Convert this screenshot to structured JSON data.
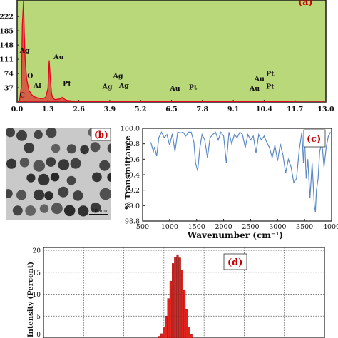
{
  "chart_data": [
    {
      "panel": "(a)",
      "type": "line",
      "background": "#b8d87a",
      "line_color": "#e8001c",
      "xlim": [
        0.0,
        13.0
      ],
      "x_ticks": [
        "0.0",
        "1.3",
        "2.6",
        "3.9",
        "5.2",
        "6.5",
        "7.8",
        "9.1",
        "10.4",
        "11.7",
        "13.0"
      ],
      "y_ticks": [
        "37",
        "74",
        "111",
        "148",
        "185",
        "222"
      ],
      "ylim": [
        0,
        265
      ],
      "x": [
        0.0,
        0.1,
        0.18,
        0.22,
        0.27,
        0.3,
        0.34,
        0.4,
        0.5,
        0.6,
        0.7,
        0.8,
        0.9,
        1.0,
        1.1,
        1.2,
        1.3,
        1.35,
        1.4,
        1.45,
        1.5,
        1.6,
        1.8,
        1.9,
        2.0,
        2.1,
        2.3,
        2.6,
        3.0,
        3.5,
        4.0,
        4.5,
        5.0,
        6.0,
        7.0,
        8.0,
        9.0,
        10.0,
        11.0,
        12.0,
        13.0
      ],
      "y": [
        0,
        3,
        40,
        200,
        262,
        180,
        110,
        60,
        30,
        20,
        14,
        12,
        10,
        9,
        9,
        12,
        35,
        108,
        60,
        22,
        10,
        6,
        8,
        12,
        7,
        4,
        3,
        2,
        2,
        2,
        2,
        1,
        1,
        1,
        1,
        1,
        1,
        1,
        1,
        0,
        0
      ],
      "peak_labels": [
        {
          "text": "Ag",
          "x": 0.32,
          "y": 128
        },
        {
          "text": "C",
          "x": 0.22,
          "y": 12
        },
        {
          "text": "O",
          "x": 0.55,
          "y": 62
        },
        {
          "text": "Al",
          "x": 0.85,
          "y": 37
        },
        {
          "text": "Au",
          "x": 1.75,
          "y": 111
        },
        {
          "text": "Pt",
          "x": 2.1,
          "y": 42
        },
        {
          "text": "Ag",
          "x": 4.25,
          "y": 62
        },
        {
          "text": "Ag",
          "x": 3.8,
          "y": 34
        },
        {
          "text": "Ag",
          "x": 4.5,
          "y": 37
        },
        {
          "text": "Au",
          "x": 6.65,
          "y": 30
        },
        {
          "text": "Pt",
          "x": 7.4,
          "y": 32
        },
        {
          "text": "Au",
          "x": 10.2,
          "y": 55
        },
        {
          "text": "Pt",
          "x": 10.65,
          "y": 68
        },
        {
          "text": "Au",
          "x": 10.0,
          "y": 30
        },
        {
          "text": "Pt",
          "x": 10.65,
          "y": 34
        }
      ]
    },
    {
      "panel": "(b)",
      "type": "image",
      "scale_bar": "20 nm"
    },
    {
      "panel": "(c)",
      "type": "line",
      "line_color": "#5b8ac6",
      "xlabel": "Wavenumber (cm⁻¹)",
      "ylabel": "% Transmittance",
      "xlim": [
        500,
        4000
      ],
      "ylim": [
        98.8,
        100.0
      ],
      "x_ticks": [
        "500",
        "1000",
        "1500",
        "2000",
        "2500",
        "3000",
        "3500",
        "4000"
      ],
      "y_ticks": [
        "98.8",
        "99.0",
        "99.2",
        "99.4",
        "99.6",
        "99.8",
        "100.0"
      ],
      "x": [
        650,
        700,
        720,
        760,
        800,
        850,
        900,
        950,
        1000,
        1050,
        1100,
        1150,
        1200,
        1250,
        1300,
        1350,
        1400,
        1450,
        1480,
        1520,
        1560,
        1600,
        1650,
        1700,
        1750,
        1800,
        1850,
        1900,
        1950,
        2000,
        2050,
        2100,
        2150,
        2200,
        2250,
        2300,
        2350,
        2400,
        2450,
        2500,
        2550,
        2600,
        2650,
        2700,
        2750,
        2800,
        2850,
        2900,
        2950,
        3000,
        3050,
        3100,
        3150,
        3200,
        3250,
        3300,
        3350,
        3400,
        3450,
        3480,
        3500,
        3530,
        3560,
        3600,
        3640,
        3680,
        3700,
        3720,
        3750,
        3780,
        3820,
        3860,
        3900,
        3940,
        3980
      ],
      "y": [
        99.82,
        99.7,
        99.76,
        99.64,
        99.88,
        99.95,
        99.88,
        99.92,
        99.78,
        99.93,
        99.7,
        99.95,
        99.94,
        99.95,
        99.9,
        99.95,
        99.95,
        99.82,
        99.55,
        99.45,
        99.75,
        99.92,
        99.85,
        99.62,
        99.88,
        99.92,
        99.95,
        99.85,
        99.95,
        99.9,
        99.55,
        99.95,
        99.8,
        99.92,
        99.88,
        99.95,
        99.92,
        99.75,
        99.92,
        99.85,
        99.9,
        99.68,
        99.92,
        99.85,
        99.9,
        99.82,
        99.75,
        99.62,
        99.78,
        99.58,
        99.8,
        99.65,
        99.42,
        99.6,
        99.5,
        99.3,
        99.35,
        99.72,
        99.95,
        99.55,
        99.88,
        99.35,
        99.6,
        99.1,
        99.55,
        99.0,
        98.92,
        99.2,
        99.35,
        99.7,
        99.82,
        99.5,
        99.75,
        99.9,
        99.95
      ]
    },
    {
      "panel": "(d)",
      "type": "bar",
      "bar_color": "#e0231d",
      "ylabel": "Intensity (Percent)",
      "ylim": [
        0,
        20
      ],
      "y_ticks": [
        "0",
        "5",
        "10",
        "15",
        "20"
      ],
      "bars": [
        0.4,
        1.0,
        2.5,
        5.0,
        9.0,
        13.0,
        17.0,
        18.5,
        19.0,
        18.3,
        15.5,
        11.0,
        6.5,
        2.5,
        0.8
      ]
    }
  ]
}
